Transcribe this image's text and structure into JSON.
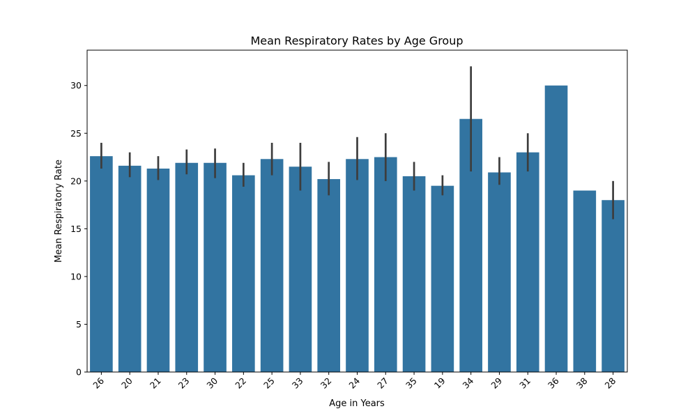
{
  "chart_data": {
    "type": "bar",
    "title": "Mean Respiratory Rates by Age Group",
    "xlabel": "Age in Years",
    "ylabel": "Mean Respiratory Rate",
    "categories": [
      "26",
      "20",
      "21",
      "23",
      "30",
      "22",
      "25",
      "33",
      "32",
      "24",
      "27",
      "35",
      "19",
      "34",
      "29",
      "31",
      "36",
      "38",
      "28"
    ],
    "values": [
      22.6,
      21.6,
      21.3,
      21.9,
      21.9,
      20.6,
      22.3,
      21.5,
      20.2,
      22.3,
      22.5,
      20.5,
      19.5,
      26.5,
      20.9,
      23.0,
      30.0,
      19.0,
      18.0
    ],
    "error_low": [
      21.3,
      20.4,
      20.1,
      20.7,
      20.3,
      19.4,
      20.6,
      19.0,
      18.5,
      20.1,
      20.0,
      19.0,
      18.5,
      21.0,
      19.6,
      21.0,
      null,
      null,
      16.0
    ],
    "error_high": [
      24.0,
      23.0,
      22.6,
      23.3,
      23.4,
      21.9,
      24.0,
      24.0,
      22.0,
      24.6,
      25.0,
      22.0,
      20.6,
      32.0,
      22.5,
      25.0,
      null,
      null,
      20.0
    ],
    "ylim": [
      0,
      33.7
    ],
    "yticks": [
      "0",
      "5",
      "10",
      "15",
      "20",
      "25",
      "30"
    ],
    "ytick_values": [
      0,
      5,
      10,
      15,
      20,
      25,
      30
    ],
    "bar_color": "#3274a1",
    "error_color": "#3d3d3d",
    "grid": false,
    "legend": "none"
  }
}
